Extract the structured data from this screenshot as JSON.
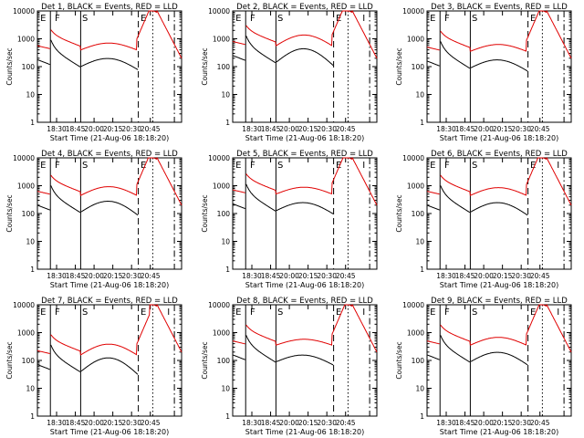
{
  "figure": {
    "xlabel": "Start Time (21-Aug-06 18:18:20)",
    "ylabel": "Counts/sec",
    "x_ticks": [
      "18:30",
      "18:45",
      "20:00",
      "20:15",
      "20:30",
      "20:45"
    ],
    "y_ticks": [
      "1",
      "10",
      "100",
      "1000",
      "10000"
    ],
    "colors": {
      "events": "#000000",
      "lld": "#e00000"
    },
    "marker_labels": [
      "E",
      "F",
      "S",
      "E",
      "S",
      "E",
      "I"
    ]
  },
  "chart_data": [
    {
      "type": "line",
      "title": "Det  1, BLACK = Events, RED = LLD",
      "ylim": [
        1,
        10000
      ],
      "yscale": "log",
      "series": [
        {
          "name": "Events"
        },
        {
          "name": "LLD"
        }
      ]
    },
    {
      "type": "line",
      "title": "Det  2, BLACK = Events, RED = LLD",
      "ylim": [
        1,
        10000
      ],
      "yscale": "log",
      "series": [
        {
          "name": "Events"
        },
        {
          "name": "LLD"
        }
      ]
    },
    {
      "type": "line",
      "title": "Det  3, BLACK = Events, RED = LLD",
      "ylim": [
        1,
        10000
      ],
      "yscale": "log",
      "series": [
        {
          "name": "Events"
        },
        {
          "name": "LLD"
        }
      ]
    },
    {
      "type": "line",
      "title": "Det  4, BLACK = Events, RED = LLD",
      "ylim": [
        1,
        10000
      ],
      "yscale": "log",
      "series": [
        {
          "name": "Events"
        },
        {
          "name": "LLD"
        }
      ]
    },
    {
      "type": "line",
      "title": "Det  5, BLACK = Events, RED = LLD",
      "ylim": [
        1,
        10000
      ],
      "yscale": "log",
      "series": [
        {
          "name": "Events"
        },
        {
          "name": "LLD"
        }
      ]
    },
    {
      "type": "line",
      "title": "Det  6, BLACK = Events, RED = LLD",
      "ylim": [
        1,
        10000
      ],
      "yscale": "log",
      "series": [
        {
          "name": "Events"
        },
        {
          "name": "LLD"
        }
      ]
    },
    {
      "type": "line",
      "title": "Det  7, BLACK = Events, RED = LLD",
      "ylim": [
        1,
        10000
      ],
      "yscale": "log",
      "series": [
        {
          "name": "Events"
        },
        {
          "name": "LLD"
        }
      ]
    },
    {
      "type": "line",
      "title": "Det  8, BLACK = Events, RED = LLD",
      "ylim": [
        1,
        10000
      ],
      "yscale": "log",
      "series": [
        {
          "name": "Events"
        },
        {
          "name": "LLD"
        }
      ]
    },
    {
      "type": "line",
      "title": "Det  9, BLACK = Events, RED = LLD",
      "ylim": [
        1,
        10000
      ],
      "yscale": "log",
      "series": [
        {
          "name": "Events"
        },
        {
          "name": "LLD"
        }
      ]
    }
  ]
}
